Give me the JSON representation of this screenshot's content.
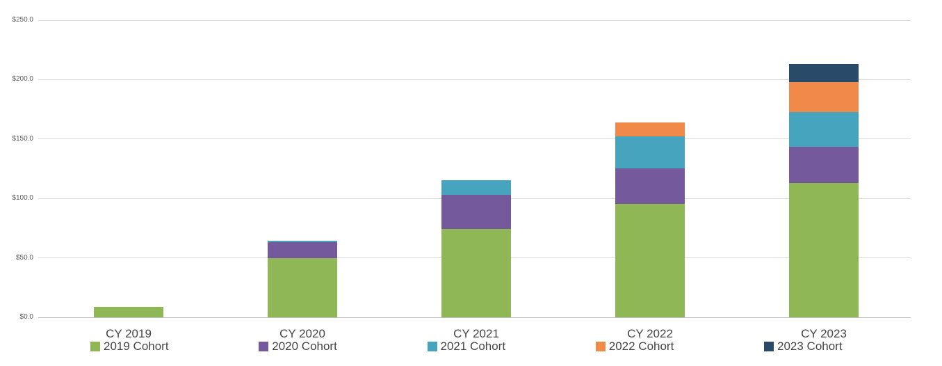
{
  "chart_data": {
    "type": "bar",
    "stacked": true,
    "categories": [
      "CY 2019",
      "CY 2020",
      "CY 2021",
      "CY 2022",
      "CY 2023"
    ],
    "series": [
      {
        "name": "2019 Cohort",
        "color": "#8FB755",
        "values": [
          9,
          50,
          74.5,
          95.5,
          113
        ]
      },
      {
        "name": "2020 Cohort",
        "color": "#745A9D",
        "values": [
          0,
          13,
          28.5,
          30,
          30.5
        ]
      },
      {
        "name": "2021 Cohort",
        "color": "#46A4BE",
        "values": [
          0,
          1.5,
          12.5,
          26.5,
          29
        ]
      },
      {
        "name": "2022 Cohort",
        "color": "#F18A49",
        "values": [
          0,
          0,
          0,
          12,
          25.5
        ]
      },
      {
        "name": "2023 Cohort",
        "color": "#294A68",
        "values": [
          0,
          0,
          0,
          0,
          15
        ]
      }
    ],
    "ylim": [
      0,
      250
    ],
    "y_tick_step": 50,
    "y_tick_labels": [
      "$0.0",
      "$50.0",
      "$100.0",
      "$150.0",
      "$200.0",
      "$250.0"
    ],
    "grid": true,
    "legend_position": "bottom",
    "colors": {
      "gridline": "#D9D9D9",
      "axis_line": "#BFBFBF",
      "tick_label": "#595959",
      "label_text": "#454545"
    }
  }
}
